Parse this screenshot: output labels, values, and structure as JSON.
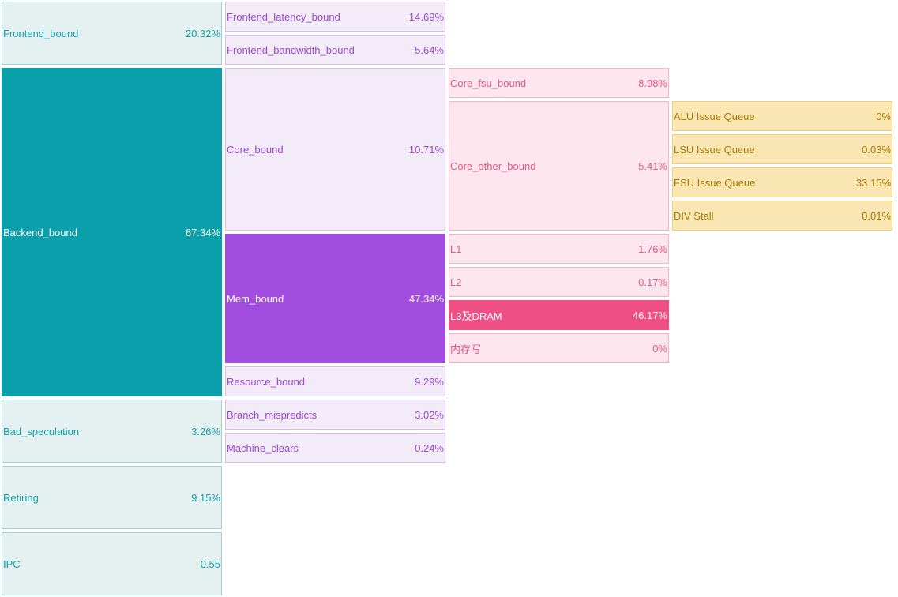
{
  "level1": {
    "frontend_bound": {
      "label": "Frontend_bound",
      "value": "20.32%"
    },
    "backend_bound": {
      "label": "Backend_bound",
      "value": "67.34%"
    },
    "bad_speculation": {
      "label": "Bad_speculation",
      "value": "3.26%"
    },
    "retiring": {
      "label": "Retiring",
      "value": "9.15%"
    },
    "ipc": {
      "label": "IPC",
      "value": "0.55"
    }
  },
  "level2": {
    "frontend_latency_bound": {
      "label": "Frontend_latency_bound",
      "value": "14.69%"
    },
    "frontend_bandwidth_bound": {
      "label": "Frontend_bandwidth_bound",
      "value": "5.64%"
    },
    "core_bound": {
      "label": "Core_bound",
      "value": "10.71%"
    },
    "mem_bound": {
      "label": "Mem_bound",
      "value": "47.34%"
    },
    "resource_bound": {
      "label": "Resource_bound",
      "value": "9.29%"
    },
    "branch_mispredicts": {
      "label": "Branch_mispredicts",
      "value": "3.02%"
    },
    "machine_clears": {
      "label": "Machine_clears",
      "value": "0.24%"
    }
  },
  "level3": {
    "core_fsu_bound": {
      "label": "Core_fsu_bound",
      "value": "8.98%"
    },
    "core_other_bound": {
      "label": "Core_other_bound",
      "value": "5.41%"
    },
    "l1": {
      "label": "L1",
      "value": "1.76%"
    },
    "l2": {
      "label": "L2",
      "value": "0.17%"
    },
    "l3_dram": {
      "label": "L3及DRAM",
      "value": "46.17%"
    },
    "mem_write": {
      "label": "内存写",
      "value": "0%"
    }
  },
  "level4": {
    "alu_issue_queue": {
      "label": "ALU Issue Queue",
      "value": "0%"
    },
    "lsu_issue_queue": {
      "label": "LSU Issue Queue",
      "value": "0.03%"
    },
    "fsu_issue_queue": {
      "label": "FSU Issue Queue",
      "value": "33.15%"
    },
    "div_stall": {
      "label": "DIV Stall",
      "value": "0.01%"
    }
  }
}
